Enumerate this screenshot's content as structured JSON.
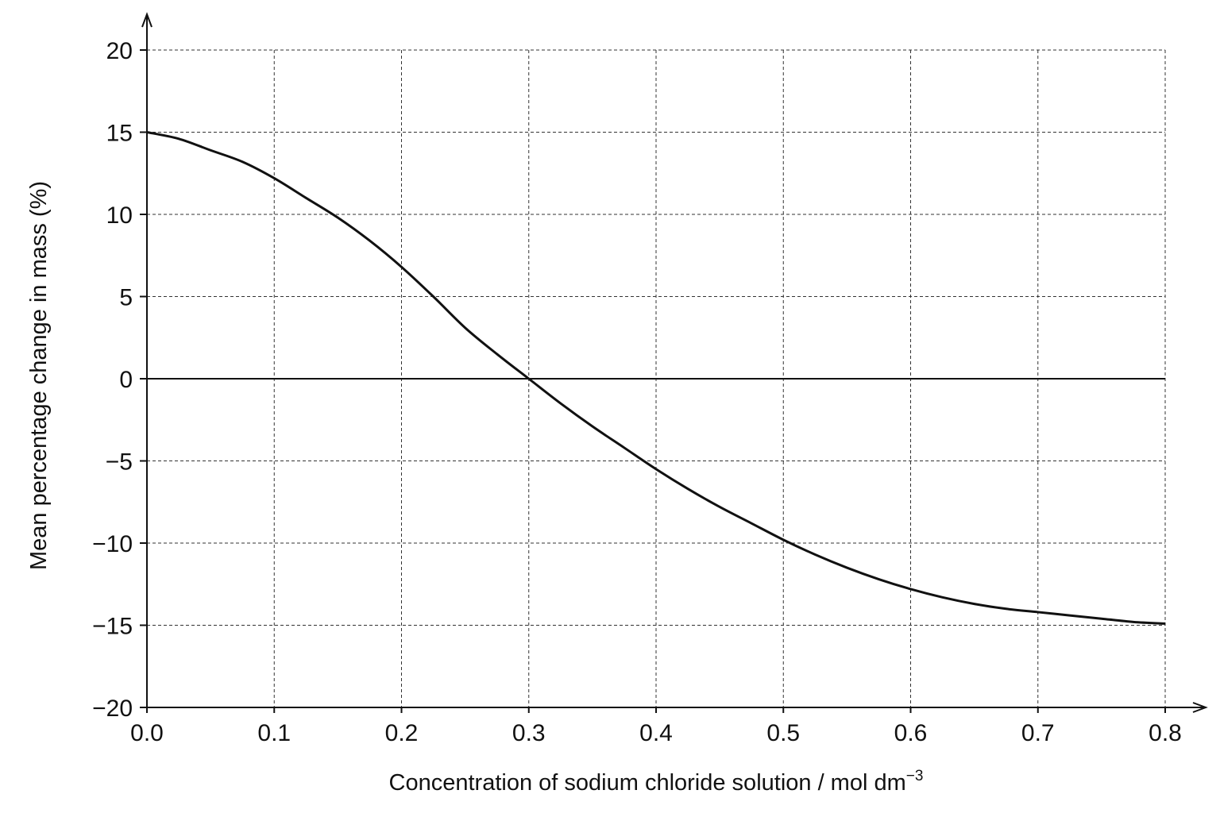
{
  "chart_data": {
    "type": "line",
    "xlabel": "Concentration of sodium chloride solution / mol dm",
    "xlabel_superscript": "−3",
    "ylabel": "Mean percentage change in mass (%)",
    "xlim": [
      0.0,
      0.8
    ],
    "ylim": [
      -20,
      20
    ],
    "x_ticks": [
      "0.0",
      "0.1",
      "0.2",
      "0.3",
      "0.4",
      "0.5",
      "0.6",
      "0.7",
      "0.8"
    ],
    "y_ticks": [
      "20",
      "15",
      "10",
      "5",
      "0",
      "−5",
      "−10",
      "−15",
      "−20"
    ],
    "grid": true,
    "series": [
      {
        "x": [
          0.0,
          0.025,
          0.05,
          0.075,
          0.1,
          0.125,
          0.15,
          0.175,
          0.2,
          0.225,
          0.25,
          0.275,
          0.3,
          0.325,
          0.35,
          0.375,
          0.4,
          0.425,
          0.45,
          0.475,
          0.5,
          0.525,
          0.55,
          0.575,
          0.6,
          0.625,
          0.65,
          0.675,
          0.7,
          0.725,
          0.75,
          0.775,
          0.8
        ],
        "values": [
          15.0,
          14.6,
          13.9,
          13.2,
          12.2,
          11.0,
          9.8,
          8.4,
          6.8,
          5.0,
          3.1,
          1.5,
          0.0,
          -1.5,
          -2.9,
          -4.2,
          -5.5,
          -6.7,
          -7.8,
          -8.8,
          -9.8,
          -10.7,
          -11.5,
          -12.2,
          -12.8,
          -13.3,
          -13.7,
          -14.0,
          -14.2,
          -14.4,
          -14.6,
          -14.8,
          -14.9
        ]
      }
    ]
  }
}
